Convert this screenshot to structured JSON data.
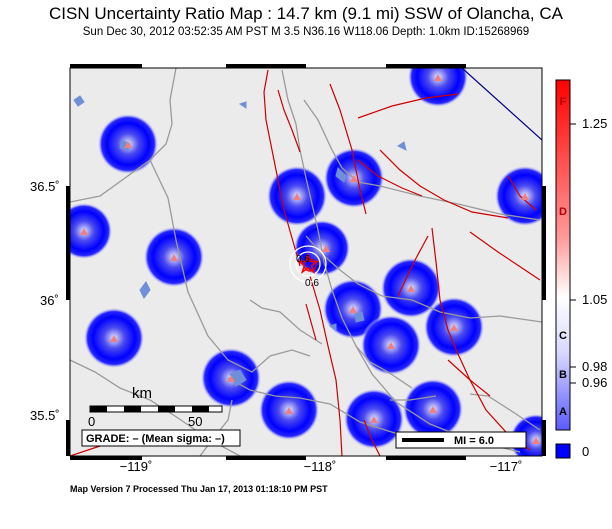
{
  "header": {
    "title": "CISN Uncertainty Ratio Map : 14.7 km (9.1 mi) SSW of Olancha, CA",
    "subtitle": "Sun Dec 30, 2012 03:52:35 AM PST    M 3.5    N36.16 W118.06    Depth: 1.0km    ID:15268969"
  },
  "axes": {
    "lat_labels": [
      "36.5˚",
      "36˚",
      "35.5˚"
    ],
    "lon_labels": [
      "−119˚",
      "−118˚",
      "−117˚"
    ]
  },
  "scalebar": {
    "unit": "km",
    "start": "0",
    "end": "50"
  },
  "grade_box": {
    "text": "GRADE: – (Mean sigma: –)"
  },
  "mi_box": {
    "text": "MI = 6.0"
  },
  "epicenter_labels": {
    "upper": "0.6",
    "lower": "0.6"
  },
  "colorbar": {
    "tick_values": [
      "1.25",
      "1.05",
      "0.98",
      "0.96"
    ],
    "letters": [
      "F",
      "D",
      "C",
      "B",
      "A"
    ],
    "zero_value": "0",
    "colors": {
      "top": "#ff0000",
      "mid": "#ffffff",
      "bottom": "#0000ff"
    }
  },
  "footer": {
    "text": "Map Version 7 Processed Thu Jan 17, 2013 01:18:10 PM PST"
  },
  "colors": {
    "map_background": "#ebebeb",
    "uncertainty_blob": "#0000ff",
    "fault": "#cc0000",
    "road": "#9a9a9a",
    "water": "#6f8fd8",
    "station": "#f08080"
  }
}
